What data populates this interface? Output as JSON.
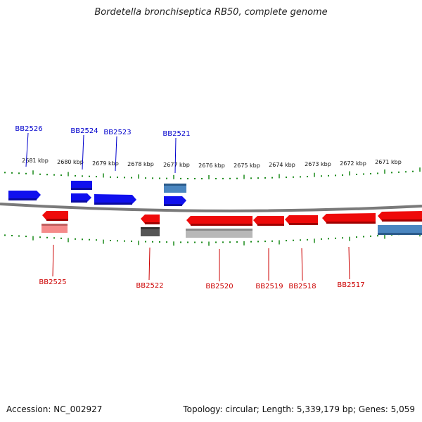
{
  "title": "Bordetella bronchiseptica RB50, complete genome",
  "footer": {
    "accession": "Accession: NC_002927",
    "summary": "Topology: circular; Length: 5,339,179 bp; Genes: 5,059"
  },
  "colors": {
    "forward_gene": "#1010ee",
    "forward_highlight": "#4a86c0",
    "reverse_gene": "#ee0a0a",
    "reverse_light": "#f58a8a",
    "dark_gray": "#555555",
    "light_gray": "#b8b8b8",
    "tick": "#1a8a1a",
    "backbone": "#808080"
  },
  "kbp_labels": [
    "2681 kbp",
    "2680 kbp",
    "2679 kbp",
    "2678 kbp",
    "2677 kbp",
    "2676 kbp",
    "2675 kbp",
    "2674 kbp",
    "2673 kbp",
    "2672 kbp",
    "2671 kbp"
  ],
  "top_gene_labels": [
    "BB2526",
    "BB2524",
    "BB2523",
    "BB2521"
  ],
  "bottom_gene_labels": [
    "BB2525",
    "BB2522",
    "BB2520",
    "BB2519",
    "BB2518",
    "BB2517"
  ]
}
